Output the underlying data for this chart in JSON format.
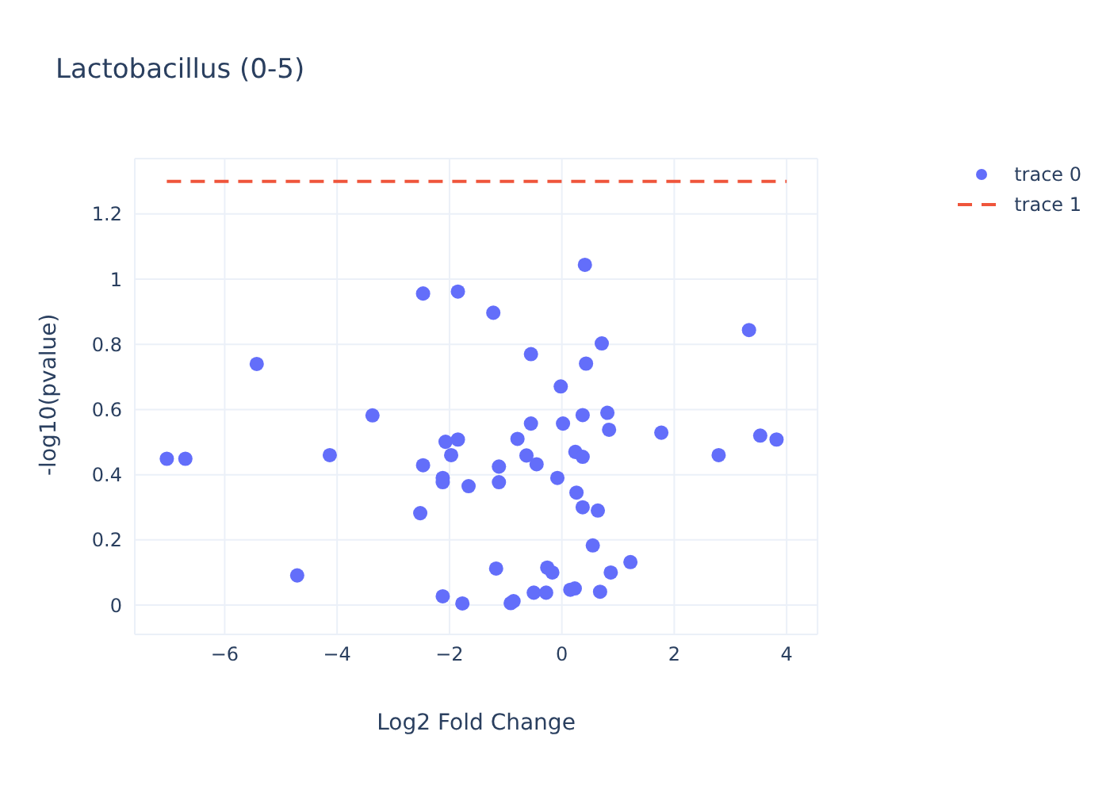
{
  "chart_data": {
    "type": "scatter",
    "title": "Lactobacillus (0-5)",
    "xlabel": "Log2 Fold Change",
    "ylabel": "-log10(pvalue)",
    "xlim": [
      -7.6,
      4.55
    ],
    "xticks": [
      {
        "value": -6,
        "label": "−6"
      },
      {
        "value": -4,
        "label": "−4"
      },
      {
        "value": -2,
        "label": "−2"
      },
      0,
      2,
      4
    ],
    "ylim": [
      -0.09,
      1.37
    ],
    "yticks": [
      0,
      0.2,
      0.4,
      0.6,
      0.8,
      1,
      1.2
    ],
    "grid": true,
    "legend": "top right",
    "marker": "circle",
    "series": [
      {
        "name": "trace 0",
        "color": "#636efa",
        "x": [
          -7.03,
          -6.7,
          -5.43,
          -4.71,
          -4.13,
          -3.37,
          -2.47,
          -2.52,
          -2.47,
          -2.12,
          -2.07,
          -2.12,
          -2.12,
          -1.97,
          -1.85,
          -1.85,
          -1.66,
          -1.77,
          -1.22,
          -1.12,
          -1.12,
          -1.17,
          -0.91,
          -0.86,
          -0.79,
          -0.63,
          -0.55,
          -0.55,
          -0.5,
          -0.45,
          -0.28,
          -0.26,
          -0.17,
          -0.08,
          -0.02,
          0.02,
          0.15,
          0.23,
          0.24,
          0.26,
          0.37,
          0.37,
          0.37,
          0.41,
          0.43,
          0.55,
          0.64,
          0.68,
          0.71,
          0.81,
          0.84,
          0.87,
          1.22,
          1.77,
          2.79,
          3.33,
          3.53,
          3.82
        ],
        "values": [
          0.449,
          0.449,
          0.74,
          0.091,
          0.46,
          0.582,
          0.956,
          0.282,
          0.429,
          0.027,
          0.501,
          0.39,
          0.377,
          0.46,
          0.508,
          0.962,
          0.365,
          0.005,
          0.897,
          0.425,
          0.377,
          0.112,
          0.006,
          0.012,
          0.51,
          0.459,
          0.77,
          0.557,
          0.038,
          0.432,
          0.038,
          0.115,
          0.1,
          0.39,
          0.671,
          0.557,
          0.047,
          0.051,
          0.47,
          0.345,
          0.583,
          0.455,
          0.3,
          1.044,
          0.741,
          0.183,
          0.29,
          0.041,
          0.803,
          0.59,
          0.538,
          0.1,
          0.132,
          0.529,
          0.46,
          0.844,
          0.52,
          0.508
        ]
      },
      {
        "name": "trace 1",
        "type": "line",
        "color": "#ef553b",
        "line_style": "dashed",
        "marker": "none",
        "x": [
          -7.03,
          4.0
        ],
        "values": [
          1.3,
          1.3
        ]
      }
    ]
  }
}
